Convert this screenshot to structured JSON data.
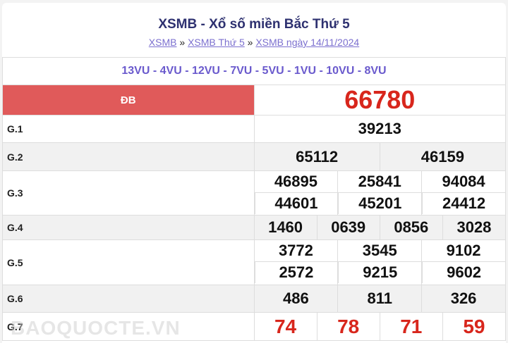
{
  "title": "XSMB - Xổ số miền Bắc Thứ 5",
  "breadcrumb": [
    "XSMB",
    "XSMB Thứ 5",
    "XSMB ngày 14/11/2024"
  ],
  "separator": "»",
  "codes": "13VU - 4VU - 12VU - 7VU - 5VU - 1VU - 10VU - 8VU",
  "prizes": {
    "db": {
      "label": "ĐB",
      "numbers": [
        "66780"
      ]
    },
    "g1": {
      "label": "G.1",
      "numbers": [
        "39213"
      ]
    },
    "g2": {
      "label": "G.2",
      "numbers": [
        "65112",
        "46159"
      ]
    },
    "g3": {
      "label": "G.3",
      "numbers": [
        "46895",
        "25841",
        "94084",
        "44601",
        "45201",
        "24412"
      ]
    },
    "g4": {
      "label": "G.4",
      "numbers": [
        "1460",
        "0639",
        "0856",
        "3028"
      ]
    },
    "g5": {
      "label": "G.5",
      "numbers": [
        "3772",
        "3545",
        "9102",
        "2572",
        "9215",
        "9602"
      ]
    },
    "g6": {
      "label": "G.6",
      "numbers": [
        "486",
        "811",
        "326"
      ]
    },
    "g7": {
      "label": "G.7",
      "numbers": [
        "74",
        "78",
        "71",
        "59"
      ]
    }
  },
  "watermark": "BAOQUOCTE.VN",
  "colors": {
    "title": "#2e3170",
    "link": "#7b6fcf",
    "codes": "#6a5acd",
    "special": "#d8261c",
    "db_label_bg": "#e05a5a"
  }
}
